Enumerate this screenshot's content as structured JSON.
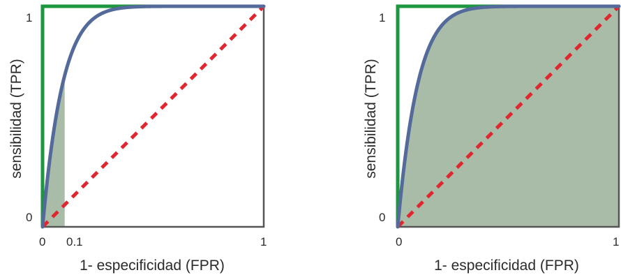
{
  "colors": {
    "roc_curve": "#546a9a",
    "random_line": "#e0262f",
    "perfect_line": "#1e9640",
    "auc_fill": "#a9bca8",
    "axes": "#555555"
  },
  "chart_data": [
    {
      "type": "line",
      "xlabel": "1- especificidad (FPR)",
      "ylabel": "sensibilidad (TPR)",
      "xlim": [
        0,
        1
      ],
      "ylim": [
        0,
        1
      ],
      "x_ticks": [
        "0",
        "0.1",
        "1"
      ],
      "y_ticks": [
        "0",
        "1"
      ],
      "shaded_region": {
        "from_x": 0,
        "to_x": 0.1,
        "under": "roc_curve"
      },
      "series": [
        {
          "style": "roc_curve",
          "x": [
            0,
            0.02,
            0.05,
            0.1,
            0.2,
            0.3,
            0.5,
            0.7,
            1
          ],
          "y": [
            0,
            0.35,
            0.53,
            0.67,
            0.81,
            0.88,
            0.95,
            0.985,
            1
          ]
        },
        {
          "style": "random_line",
          "x": [
            0,
            1
          ],
          "y": [
            0,
            1
          ]
        },
        {
          "style": "perfect_line",
          "x": [
            0,
            0,
            1
          ],
          "y": [
            0,
            1,
            1
          ]
        }
      ]
    },
    {
      "type": "line",
      "xlabel": "1- especificidad (FPR)",
      "ylabel": "sensibilidad (TPR)",
      "xlim": [
        0,
        1
      ],
      "ylim": [
        0,
        1
      ],
      "x_ticks": [
        "0",
        "1"
      ],
      "y_ticks": [
        "0",
        "1"
      ],
      "shaded_region": {
        "from_x": 0,
        "to_x": 1,
        "under": "roc_curve"
      },
      "series": [
        {
          "style": "roc_curve",
          "x": [
            0,
            0.02,
            0.05,
            0.1,
            0.2,
            0.3,
            0.5,
            0.7,
            1
          ],
          "y": [
            0,
            0.35,
            0.53,
            0.67,
            0.81,
            0.88,
            0.95,
            0.985,
            1
          ]
        },
        {
          "style": "random_line",
          "x": [
            0,
            1
          ],
          "y": [
            0,
            1
          ]
        },
        {
          "style": "perfect_line",
          "x": [
            0,
            0,
            1
          ],
          "y": [
            0,
            1,
            1
          ]
        }
      ]
    }
  ]
}
